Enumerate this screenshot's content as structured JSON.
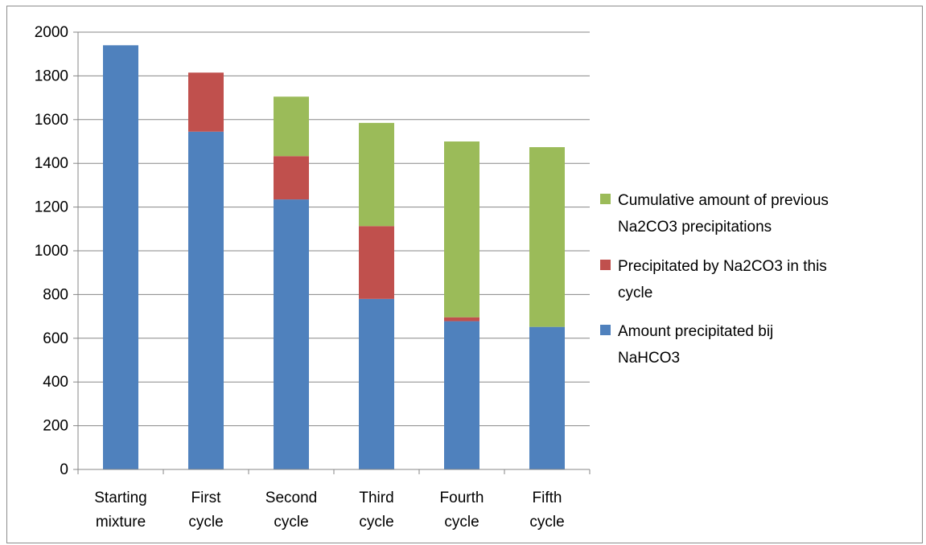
{
  "chart_data": {
    "type": "bar",
    "stacked": true,
    "title": "",
    "xlabel": "",
    "ylabel": "",
    "categories": [
      "Starting mixture",
      "First cycle",
      "Second cycle",
      "Third cycle",
      "Fourth cycle",
      "Fifth cycle"
    ],
    "category_lines": [
      [
        "Starting",
        "mixture"
      ],
      [
        "First",
        "cycle"
      ],
      [
        "Second",
        "cycle"
      ],
      [
        "Third",
        "cycle"
      ],
      [
        "Fourth",
        "cycle"
      ],
      [
        "Fifth",
        "cycle"
      ]
    ],
    "series": [
      {
        "name": "Amount precipitated bij NaHCO3",
        "color": "#4f81bd",
        "values": [
          1940,
          1545,
          1235,
          780,
          678,
          652
        ]
      },
      {
        "name": "Precipitated by Na2CO3 in this cycle",
        "color": "#c0504d",
        "values": [
          0,
          270,
          198,
          333,
          18,
          0
        ]
      },
      {
        "name": "Cumulative amount of previous Na2CO3 precipitations",
        "color": "#9bbb59",
        "values": [
          0,
          0,
          272,
          472,
          804,
          822
        ]
      }
    ],
    "ylim": [
      0,
      2000
    ],
    "yticks": [
      0,
      200,
      400,
      600,
      800,
      1000,
      1200,
      1400,
      1600,
      1800,
      2000
    ],
    "grid": true,
    "legend_position": "right",
    "legend": [
      {
        "series_index": 2,
        "lines": [
          "Cumulative amount of previous",
          "Na2CO3 precipitations"
        ]
      },
      {
        "series_index": 1,
        "lines": [
          "Precipitated by Na2CO3 in this",
          "cycle"
        ]
      },
      {
        "series_index": 0,
        "lines": [
          "Amount precipitated bij",
          "NaHCO3"
        ]
      }
    ]
  }
}
